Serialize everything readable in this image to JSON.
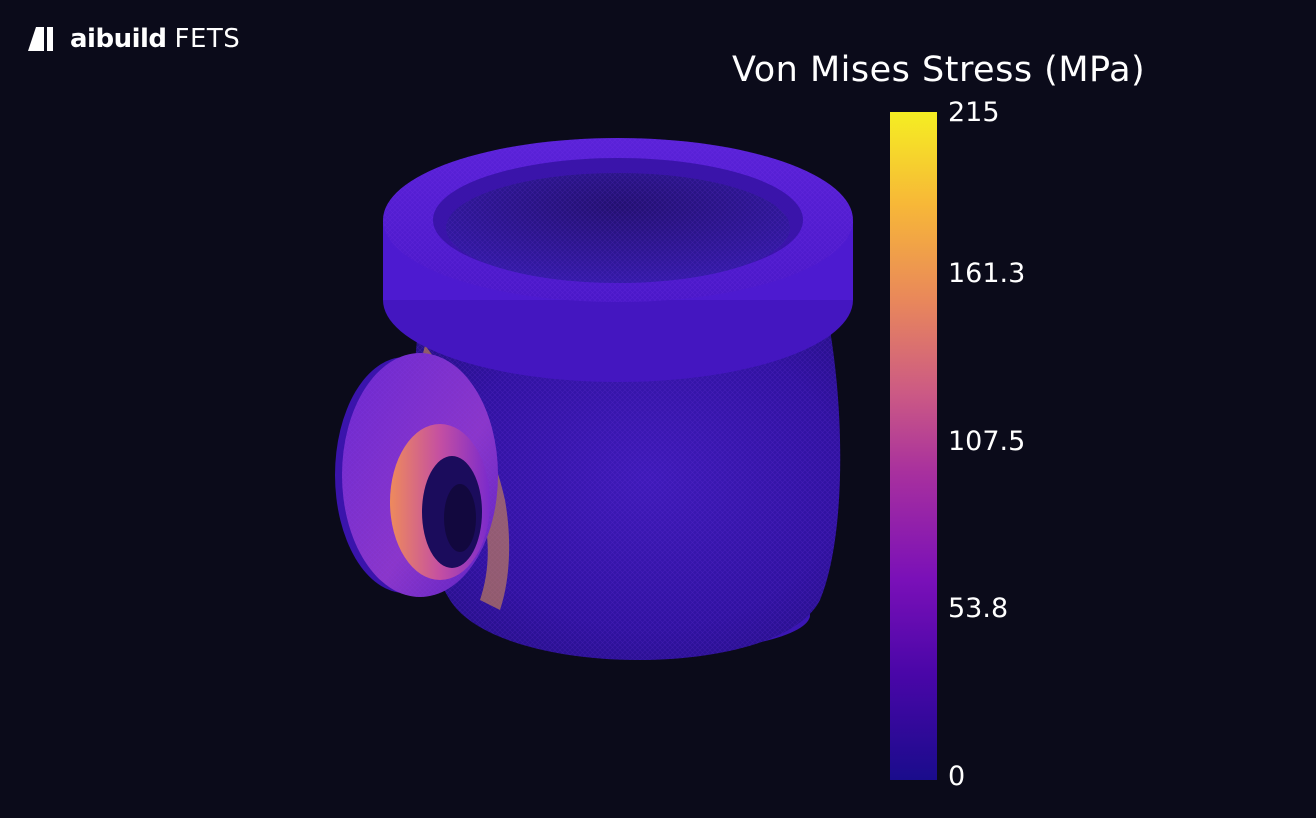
{
  "brand": {
    "name": "aibuild",
    "product": "FETS"
  },
  "legend": {
    "title": "Von Mises Stress (MPa)",
    "ticks": [
      "215",
      "161.3",
      "107.5",
      "53.8",
      "0"
    ],
    "colormap": [
      "#1a0c8c",
      "#4a06a8",
      "#7a10b8",
      "#a8309e",
      "#cc5a84",
      "#e9885a",
      "#f7b738",
      "#f5ee22"
    ]
  },
  "scene": {
    "object": "pipe-tee-model"
  }
}
